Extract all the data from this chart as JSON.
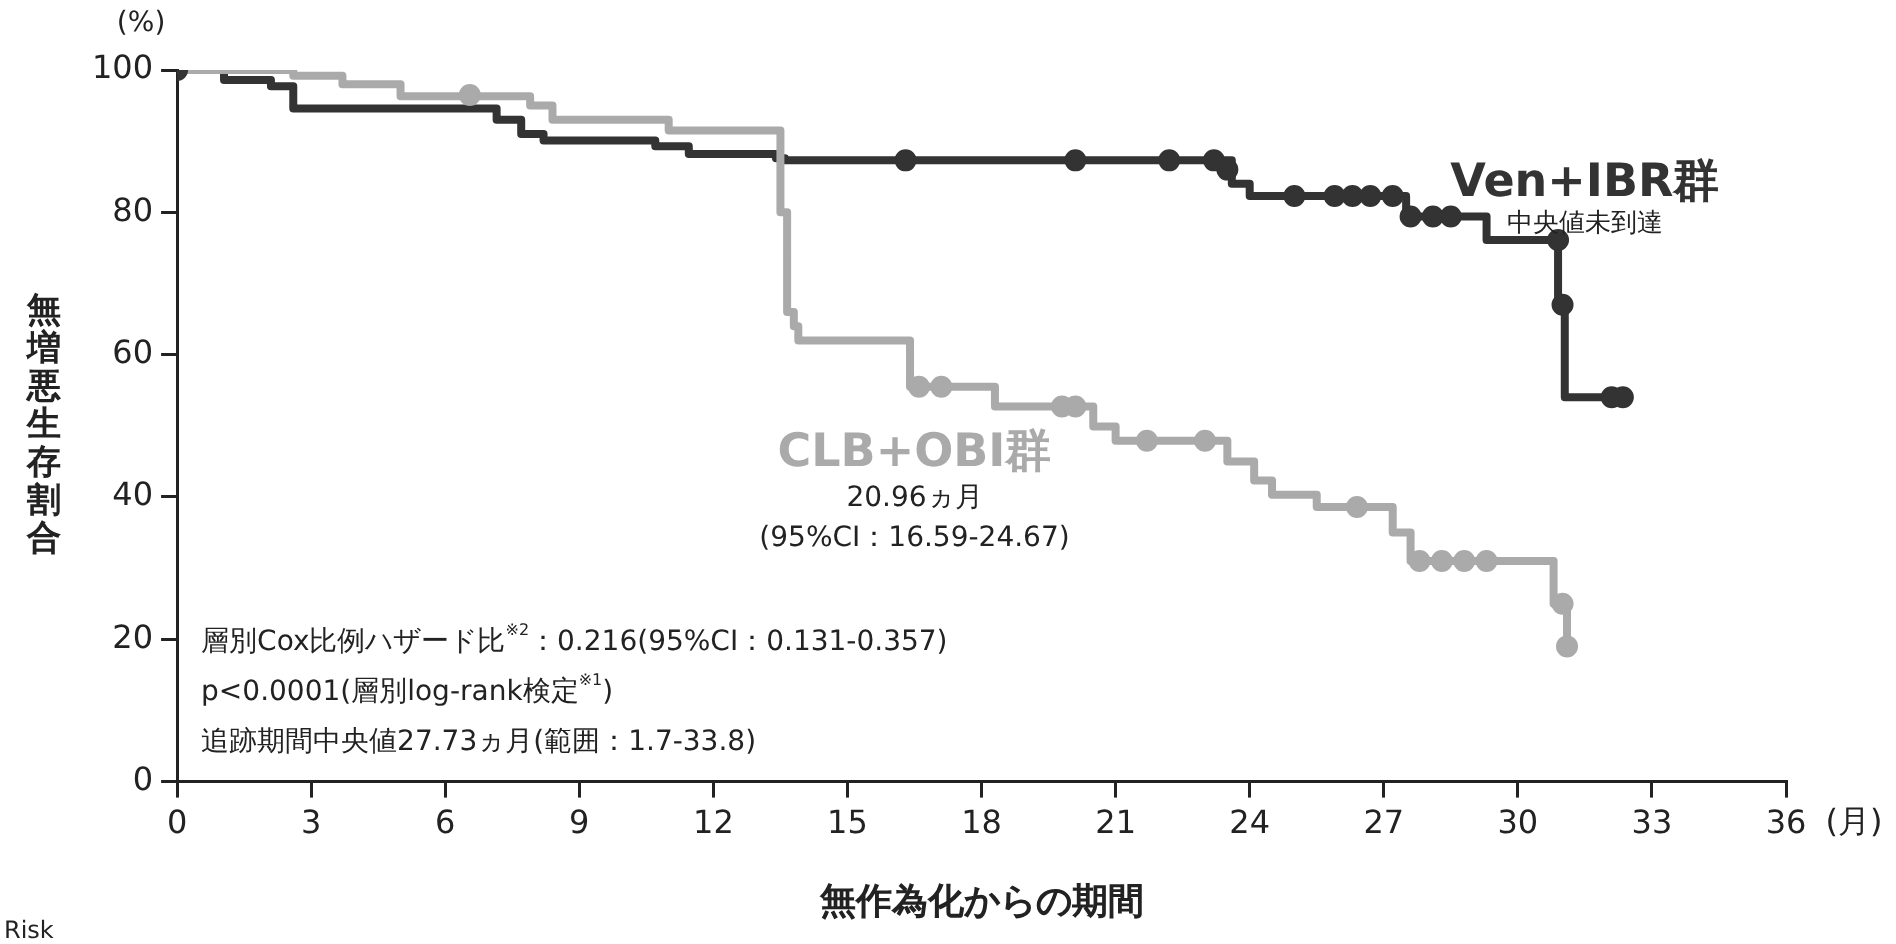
{
  "chart_data": {
    "type": "step",
    "xlabel": "無作為化からの期間",
    "ylabel": "無増悪生存割合",
    "xlim": [
      0,
      36
    ],
    "xticks": [
      0,
      3,
      6,
      9,
      12,
      15,
      18,
      21,
      24,
      27,
      30,
      33,
      36
    ],
    "ylim": [
      0,
      100
    ],
    "yticks": [
      0,
      20,
      40,
      60,
      80,
      100
    ],
    "grid": false,
    "legend": false,
    "series": [
      {
        "name": "Ven+IBR群",
        "color": "#333333",
        "x": [
          0,
          1.05,
          2.1,
          2.6,
          7.15,
          7.7,
          8.2,
          10.7,
          11.45,
          13.4,
          13.6,
          23.6,
          24,
          27.5,
          29.3,
          30.9,
          31.05,
          32.35
        ],
        "values": [
          100,
          98.6,
          97.7,
          94.6,
          93,
          91,
          90.1,
          89.3,
          88.2,
          87.6,
          87.3,
          84,
          82.3,
          79.4,
          76.1,
          67,
          54,
          54
        ]
      },
      {
        "name": "CLB+OBI群",
        "color": "#aaaaaa",
        "x": [
          0,
          2.6,
          3.7,
          5,
          7.9,
          8.4,
          11,
          13.5,
          13.65,
          13.8,
          13.9,
          16.4,
          18.3,
          20.5,
          21,
          23.5,
          24.1,
          24.5,
          25.5,
          27.2,
          27.6,
          30.8,
          31.1
        ],
        "values": [
          100,
          99.2,
          98,
          96.3,
          95,
          93,
          91.5,
          80,
          66,
          64,
          62,
          55.5,
          52.7,
          49.9,
          47.9,
          45,
          42.3,
          40.3,
          38.6,
          35,
          31,
          25,
          19
        ]
      },
      {
        "color": "#333333",
        "type": "scatter",
        "marker": "circle",
        "x": [
          0,
          16.3,
          20.1,
          22.2,
          23.2,
          23.5,
          25,
          25.9,
          26.3,
          26.7,
          27.2,
          27.6,
          28.1,
          28.5,
          30.9,
          31,
          32.1,
          32.35
        ],
        "values": [
          100,
          87.3,
          87.3,
          87.3,
          87.3,
          86,
          82.3,
          82.3,
          82.3,
          82.3,
          82.3,
          79.4,
          79.4,
          79.4,
          76.1,
          67,
          54,
          54
        ]
      },
      {
        "color": "#aaaaaa",
        "type": "scatter",
        "marker": "circle",
        "x": [
          6.55,
          16.6,
          17.1,
          19.8,
          20.1,
          21.7,
          23,
          26.4,
          27.8,
          28.3,
          28.8,
          29.3,
          31,
          31.1
        ],
        "values": [
          96.5,
          55.5,
          55.5,
          52.7,
          52.7,
          47.9,
          47.9,
          38.6,
          31,
          31,
          31,
          31,
          25,
          19
        ]
      }
    ],
    "annotations": [
      "(%)",
      "(月)",
      "中央値未到達",
      "20.96ヵ月",
      "(95%CI：16.59-24.67)",
      "層別Cox比例ハザード比$^{※2}$：0.216(95%CI：0.131-0.357)",
      "p<0.0001(層別log-rank検定$^{※1}$)",
      "追跡期間中央値27.73ヵ月(範囲：1.7-33.8)",
      "Risk"
    ]
  }
}
